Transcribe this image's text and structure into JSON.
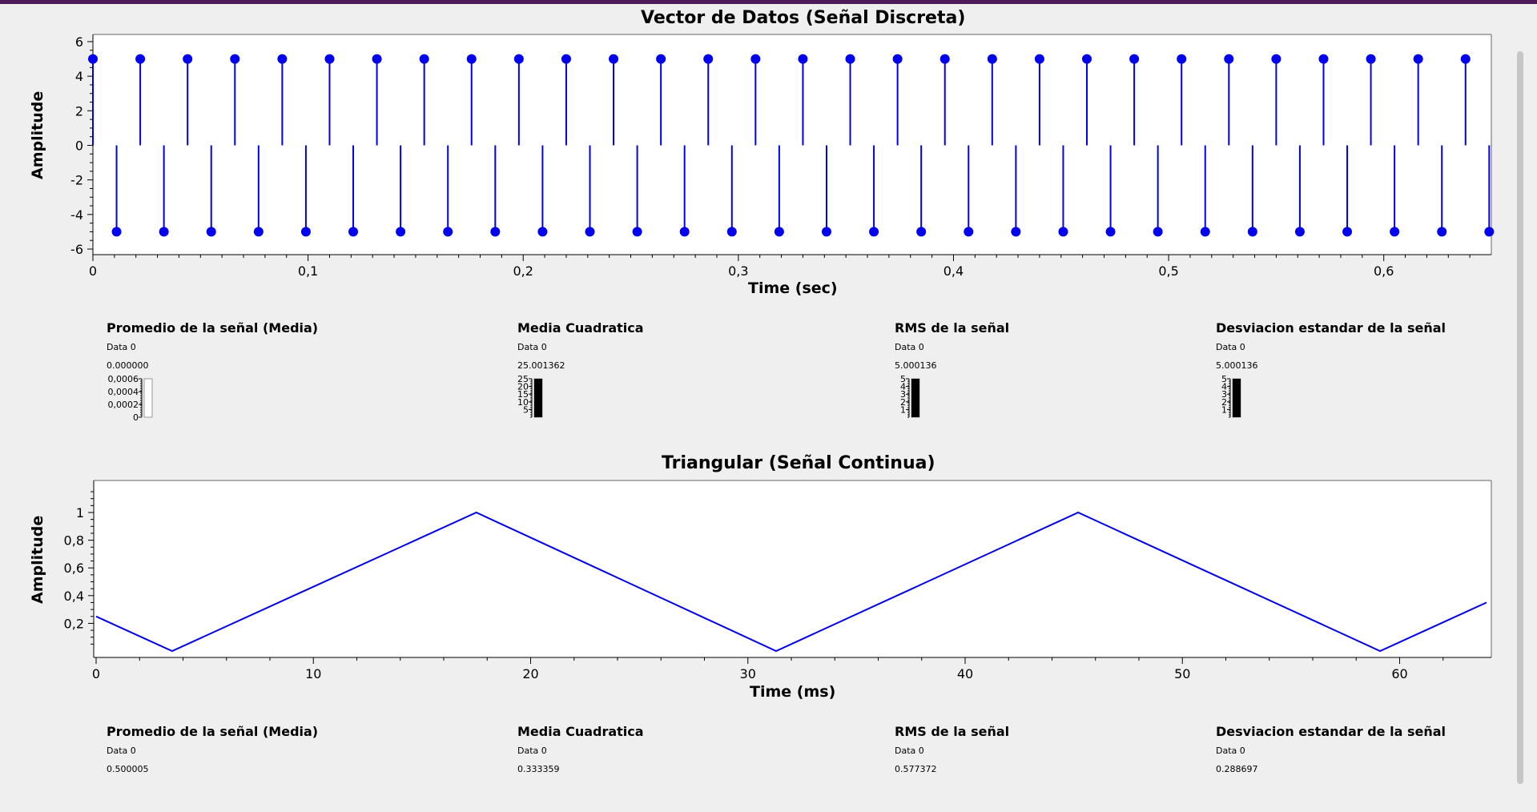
{
  "window": {
    "accent_color": "#4e1a5a"
  },
  "discrete_chart": {
    "title": "Vector de Datos (Señal Discreta)",
    "xlabel": "Time (sec)",
    "ylabel": "Amplitude",
    "xticks": [
      "0",
      "0,1",
      "0,2",
      "0,3",
      "0,4",
      "0,5",
      "0,6"
    ],
    "yticks": [
      "6",
      "4",
      "2",
      "0",
      "-2",
      "-4",
      "-6"
    ]
  },
  "discrete_stats": [
    {
      "title": "Promedio de la señal (Media)",
      "series": "Data 0",
      "value": "0.000000",
      "scale": [
        "0,0006",
        "0,0004",
        "0,0002",
        "0"
      ],
      "level": 0.0
    },
    {
      "title": "Media Cuadratica",
      "series": "Data 0",
      "value": "25.001362",
      "scale": [
        "25",
        "20",
        "15",
        "10",
        "5"
      ],
      "level": 1.0
    },
    {
      "title": "RMS de la señal",
      "series": "Data 0",
      "value": "5.000136",
      "scale": [
        "5",
        "4",
        "3",
        "2",
        "1"
      ],
      "level": 1.0
    },
    {
      "title": "Desviacion estandar de la señal",
      "series": "Data 0",
      "value": "5.000136",
      "scale": [
        "5",
        "4",
        "3",
        "2",
        "1"
      ],
      "level": 1.0
    }
  ],
  "continuous_chart": {
    "title": "Triangular (Señal Continua)",
    "xlabel": "Time (ms)",
    "ylabel": "Amplitude",
    "xticks": [
      "0",
      "10",
      "20",
      "30",
      "40",
      "50",
      "60"
    ],
    "yticks": [
      "1",
      "0,8",
      "0,6",
      "0,4",
      "0,2"
    ]
  },
  "continuous_stats": [
    {
      "title": "Promedio de la señal (Media)",
      "series": "Data 0",
      "value": "0.500005"
    },
    {
      "title": "Media Cuadratica",
      "series": "Data 0",
      "value": "0.333359"
    },
    {
      "title": "RMS de la señal",
      "series": "Data 0",
      "value": "0.577372"
    },
    {
      "title": "Desviacion estandar de la señal",
      "series": "Data 0",
      "value": "0.288697"
    }
  ],
  "chart_data": [
    {
      "type": "stem",
      "title": "Vector de Datos (Señal Discreta)",
      "xlabel": "Time (sec)",
      "ylabel": "Amplitude",
      "xlim": [
        0,
        0.65
      ],
      "ylim": [
        -6,
        6
      ],
      "series": [
        {
          "color": "#0000ee",
          "x_start": 0,
          "x_step": 0.011,
          "count": 60,
          "values_pattern": [
            5,
            -5
          ]
        }
      ]
    },
    {
      "type": "line",
      "title": "Triangular (Señal Continua)",
      "xlabel": "Time (ms)",
      "ylabel": "Amplitude",
      "xlim": [
        0,
        64
      ],
      "ylim": [
        0,
        1.2
      ],
      "series": [
        {
          "color": "#0000ee",
          "x": [
            0,
            3.5,
            17.5,
            31.3,
            45.2,
            59.1,
            64
          ],
          "y": [
            0.25,
            0.0,
            1.0,
            0.0,
            1.0,
            0.0,
            0.35
          ]
        }
      ]
    }
  ]
}
